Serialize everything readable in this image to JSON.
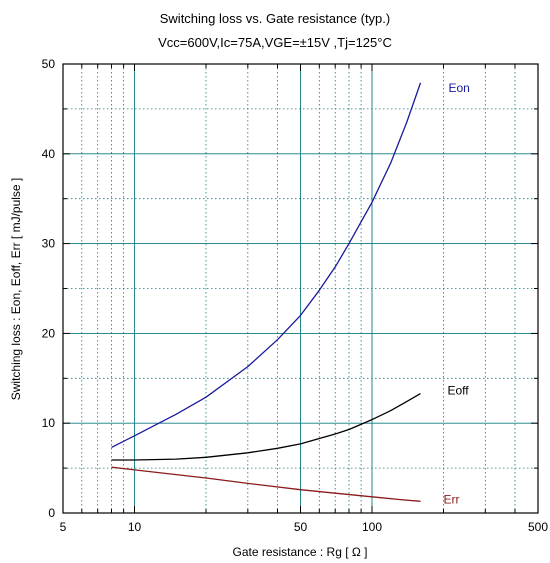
{
  "chart_data": {
    "type": "line",
    "title": "Switching loss  vs.  Gate resistance (typ.)",
    "subtitle": "Vcc=600V,Ic=75A,VGE=±15V ,Tj=125°C",
    "xlabel": "Gate resistance  :  Rg  [    Ω ]",
    "ylabel": "Switching loss  :  Eon, Eoff, Err  [ mJ/pulse ]",
    "xscale": "log",
    "xlim": [
      5,
      500
    ],
    "ylim": [
      0,
      50
    ],
    "xticks": [
      5,
      10,
      50,
      100,
      500
    ],
    "yticks": [
      0,
      10,
      20,
      30,
      40,
      50
    ],
    "grid": true,
    "series": [
      {
        "name": "Eon",
        "color": "#1a1a9c",
        "x": [
          8,
          10,
          15,
          20,
          30,
          40,
          50,
          60,
          70,
          80,
          100,
          120,
          140,
          160
        ],
        "y": [
          7.3,
          8.6,
          11.0,
          12.9,
          16.3,
          19.3,
          22.0,
          24.8,
          27.4,
          30.0,
          34.6,
          39.0,
          43.5,
          47.9
        ]
      },
      {
        "name": "Eoff",
        "color": "#000000",
        "x": [
          8,
          10,
          15,
          20,
          30,
          40,
          50,
          60,
          70,
          80,
          100,
          120,
          140,
          160
        ],
        "y": [
          5.9,
          5.9,
          6.0,
          6.2,
          6.7,
          7.2,
          7.7,
          8.3,
          8.8,
          9.3,
          10.4,
          11.4,
          12.4,
          13.3
        ]
      },
      {
        "name": "Err",
        "color": "#8b1a1a",
        "x": [
          8,
          10,
          20,
          30,
          50,
          70,
          100,
          130,
          160
        ],
        "y": [
          5.1,
          4.8,
          3.9,
          3.3,
          2.6,
          2.2,
          1.8,
          1.5,
          1.3
        ]
      }
    ]
  }
}
